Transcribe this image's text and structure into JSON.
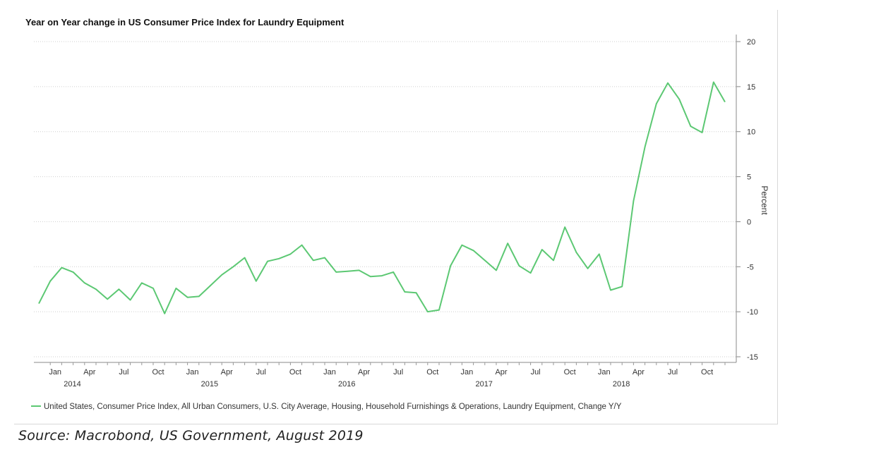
{
  "chart_data": {
    "type": "line",
    "title": "Year on Year change in US Consumer Price Index for Laundry Equipment",
    "ylabel": "Percent",
    "ylim": [
      -15,
      20
    ],
    "y_ticks": [
      20,
      15,
      10,
      5,
      0,
      -5,
      -10,
      -15
    ],
    "grid": true,
    "legend_position": "bottom-left",
    "x_ticks": [
      {
        "label": "Jan",
        "year": "2014",
        "x": "2014-01"
      },
      {
        "label": "Apr",
        "year": "",
        "x": "2014-04"
      },
      {
        "label": "Jul",
        "year": "",
        "x": "2014-07"
      },
      {
        "label": "Oct",
        "year": "",
        "x": "2014-10"
      },
      {
        "label": "Jan",
        "year": "2015",
        "x": "2015-01"
      },
      {
        "label": "Apr",
        "year": "",
        "x": "2015-04"
      },
      {
        "label": "Jul",
        "year": "",
        "x": "2015-07"
      },
      {
        "label": "Oct",
        "year": "",
        "x": "2015-10"
      },
      {
        "label": "Jan",
        "year": "2016",
        "x": "2016-01"
      },
      {
        "label": "Apr",
        "year": "",
        "x": "2016-04"
      },
      {
        "label": "Jul",
        "year": "",
        "x": "2016-07"
      },
      {
        "label": "Oct",
        "year": "",
        "x": "2016-10"
      },
      {
        "label": "Jan",
        "year": "2017",
        "x": "2017-01"
      },
      {
        "label": "Apr",
        "year": "",
        "x": "2017-04"
      },
      {
        "label": "Jul",
        "year": "",
        "x": "2017-07"
      },
      {
        "label": "Oct",
        "year": "",
        "x": "2017-10"
      },
      {
        "label": "Jan",
        "year": "2018",
        "x": "2018-01"
      },
      {
        "label": "Apr",
        "year": "",
        "x": "2018-04"
      },
      {
        "label": "Jul",
        "year": "",
        "x": "2018-07"
      },
      {
        "label": "Oct",
        "year": "",
        "x": "2018-10"
      }
    ],
    "series": [
      {
        "name": "United States, Consumer Price Index, All Urban Consumers, U.S. City Average, Housing, Household Furnishings & Operations, Laundry Equipment, Change Y/Y",
        "color": "#5cc873",
        "x": [
          "2013-12",
          "2014-01",
          "2014-02",
          "2014-03",
          "2014-04",
          "2014-05",
          "2014-06",
          "2014-07",
          "2014-08",
          "2014-09",
          "2014-10",
          "2014-11",
          "2014-12",
          "2015-01",
          "2015-02",
          "2015-03",
          "2015-04",
          "2015-05",
          "2015-06",
          "2015-07",
          "2015-08",
          "2015-09",
          "2015-10",
          "2015-11",
          "2015-12",
          "2016-01",
          "2016-02",
          "2016-03",
          "2016-04",
          "2016-05",
          "2016-06",
          "2016-07",
          "2016-08",
          "2016-09",
          "2016-10",
          "2016-11",
          "2016-12",
          "2017-01",
          "2017-02",
          "2017-03",
          "2017-04",
          "2017-05",
          "2017-06",
          "2017-07",
          "2017-08",
          "2017-09",
          "2017-10",
          "2017-11",
          "2017-12",
          "2018-01",
          "2018-02",
          "2018-03",
          "2018-04",
          "2018-05",
          "2018-06",
          "2018-07",
          "2018-08",
          "2018-09",
          "2018-10",
          "2018-11",
          "2018-12"
        ],
        "values": [
          -9.1,
          -6.6,
          -5.1,
          -5.6,
          -6.8,
          -7.5,
          -8.6,
          -7.5,
          -8.7,
          -6.8,
          -7.4,
          -10.2,
          -7.4,
          -8.4,
          -8.3,
          -7.1,
          -5.9,
          -5.0,
          -4.0,
          -6.6,
          -4.4,
          -4.1,
          -3.6,
          -2.6,
          -4.3,
          -4.0,
          -5.6,
          -5.5,
          -5.4,
          -6.1,
          -6.0,
          -5.6,
          -7.8,
          -7.9,
          -10.0,
          -9.8,
          -4.9,
          -2.6,
          -3.2,
          -4.3,
          -5.4,
          -2.4,
          -4.9,
          -5.7,
          -3.1,
          -4.3,
          -0.6,
          -3.4,
          -5.2,
          -3.6,
          -7.6,
          -7.2,
          2.3,
          8.3,
          13.1,
          15.4,
          13.6,
          10.6,
          9.9,
          15.5,
          13.3
        ]
      }
    ],
    "source": "Source:  Macrobond, US Government,  August 2019"
  }
}
